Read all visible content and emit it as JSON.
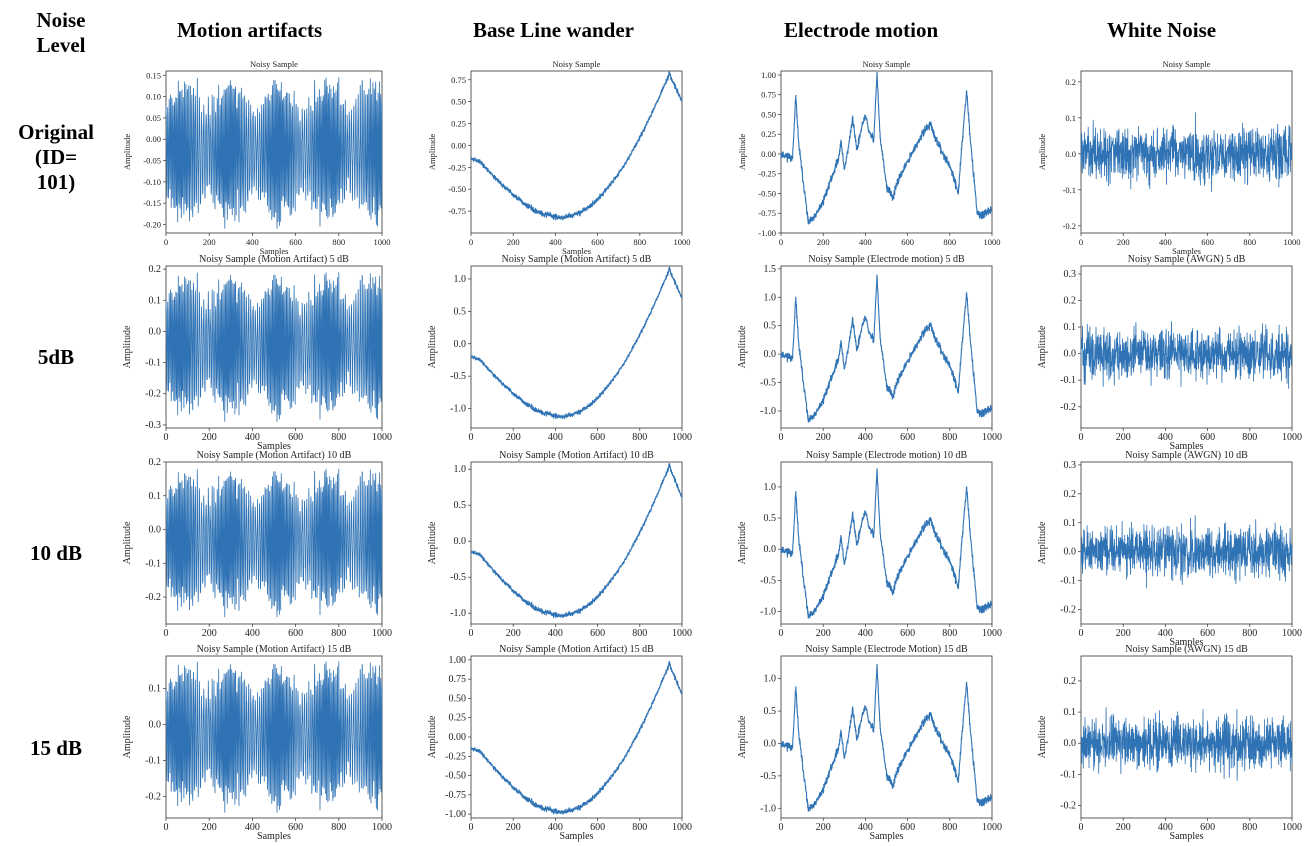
{
  "header": {
    "corner": "Noise Level",
    "columns": [
      "Motion artifacts",
      "Base Line wander",
      "Electrode motion",
      "White Noise"
    ]
  },
  "rows": [
    {
      "lines": [
        "Original",
        "(ID=",
        "101)"
      ]
    },
    {
      "lines": [
        "5dB"
      ]
    },
    {
      "lines": [
        "10 dB"
      ]
    },
    {
      "lines": [
        "15 dB"
      ]
    }
  ],
  "series_color": "#2f73b5",
  "chart_data": [
    {
      "type": "line",
      "row": 0,
      "col": 0,
      "signal": "motion",
      "title": "Noisy Sample",
      "xlabel": "Samples",
      "ylabel": "Amplitude",
      "xlim": [
        0,
        1000
      ],
      "ylim": [
        -0.22,
        0.16
      ],
      "xticks": [
        0,
        200,
        400,
        600,
        800,
        1000
      ],
      "yticks": [
        0.15,
        0.1,
        0.05,
        0.0,
        -0.05,
        -0.1,
        -0.15,
        -0.2
      ],
      "ytick_labels": [
        "0.15",
        "0.10",
        "0.05",
        "0.00",
        "-0.05",
        "-0.10",
        "-0.15",
        "-0.20"
      ],
      "scale": 0.078,
      "amp_min": -0.21,
      "amp_max": 0.145
    },
    {
      "type": "line",
      "row": 0,
      "col": 1,
      "signal": "baseline",
      "title": "Noisy Sample",
      "xlabel": "Samples",
      "ylabel": "Amplitude",
      "xlim": [
        0,
        1000
      ],
      "ylim": [
        -1.0,
        0.85
      ],
      "xticks": [
        0,
        200,
        400,
        600,
        800,
        1000
      ],
      "yticks": [
        0.75,
        0.5,
        0.25,
        0.0,
        -0.25,
        -0.5,
        -0.75
      ],
      "ytick_labels": [
        "0.75",
        "0.50",
        "0.25",
        "0.00",
        "-0.25",
        "-0.50",
        "-0.75"
      ],
      "base_start": -0.15,
      "base_min": -0.82,
      "base_peak": 0.82,
      "base_end": 0.5
    },
    {
      "type": "line",
      "row": 0,
      "col": 2,
      "signal": "electrode",
      "title": "Noisy Sample",
      "xlabel": "",
      "ylabel": "Amplitude",
      "xlim": [
        0,
        1000
      ],
      "ylim": [
        -1.0,
        1.05
      ],
      "xticks": [
        0,
        200,
        400,
        600,
        800,
        1000
      ],
      "yticks": [
        1.0,
        0.75,
        0.5,
        0.25,
        0.0,
        -0.25,
        -0.5,
        -0.75,
        -1.0
      ],
      "ytick_labels": [
        "1.00",
        "0.75",
        "0.50",
        "0.25",
        "0.00",
        "-0.25",
        "-0.50",
        "-0.75",
        "-1.00"
      ],
      "scale": 1.0
    },
    {
      "type": "line",
      "row": 0,
      "col": 3,
      "signal": "white",
      "title": "Noisy Sample",
      "xlabel": "Samples",
      "ylabel": "Amplitude",
      "xlim": [
        0,
        1000
      ],
      "ylim": [
        -0.22,
        0.23
      ],
      "xticks": [
        0,
        200,
        400,
        600,
        800,
        1000
      ],
      "yticks": [
        0.2,
        0.1,
        0.0,
        -0.1,
        -0.2
      ],
      "ytick_labels": [
        "0.2",
        "0.1",
        "0.0",
        "-0.1",
        "-0.2"
      ],
      "scale": 0.07
    },
    {
      "type": "line",
      "row": 1,
      "col": 0,
      "signal": "motion",
      "title": "Noisy Sample (Motion Artifact) 5 dB",
      "xlabel": "Samples",
      "ylabel": "Amplitude",
      "xlim": [
        0,
        1000
      ],
      "ylim": [
        -0.31,
        0.21
      ],
      "xticks": [
        0,
        200,
        400,
        600,
        800,
        1000
      ],
      "yticks": [
        0.2,
        0.1,
        0.0,
        -0.1,
        -0.2,
        -0.3
      ],
      "ytick_labels": [
        "0.2",
        "0.1",
        "0.0",
        "-0.1",
        "-0.2",
        "-0.3"
      ],
      "scale": 0.105,
      "amp_min": -0.29,
      "amp_max": 0.19
    },
    {
      "type": "line",
      "row": 1,
      "col": 1,
      "signal": "baseline",
      "title": "Noisy Sample (Motion Artifact) 5 dB",
      "xlabel": "",
      "ylabel": "Amplitude",
      "xlim": [
        0,
        1000
      ],
      "ylim": [
        -1.3,
        1.2
      ],
      "xticks": [
        0,
        200,
        400,
        600,
        800,
        1000
      ],
      "yticks": [
        1.0,
        0.5,
        0.0,
        -0.5,
        -1.0
      ],
      "ytick_labels": [
        "1.0",
        "0.5",
        "0.0",
        "-0.5",
        "-1.0"
      ],
      "base_start": -0.2,
      "base_min": -1.12,
      "base_peak": 1.15,
      "base_end": 0.7
    },
    {
      "type": "line",
      "row": 1,
      "col": 2,
      "signal": "electrode",
      "title": "Noisy Sample (Electrode motion) 5 dB",
      "xlabel": "",
      "ylabel": "Amplitude",
      "xlim": [
        0,
        1000
      ],
      "ylim": [
        -1.3,
        1.55
      ],
      "xticks": [
        0,
        200,
        400,
        600,
        800,
        1000
      ],
      "yticks": [
        1.5,
        1.0,
        0.5,
        0.0,
        -0.5,
        -1.0
      ],
      "ytick_labels": [
        "1.5",
        "1.0",
        "0.5",
        "0.0",
        "-0.5",
        "-1.0"
      ],
      "scale": 1.35
    },
    {
      "type": "line",
      "row": 1,
      "col": 3,
      "signal": "white",
      "title": "Noisy Sample (AWGN) 5 dB",
      "xlabel": "Samples",
      "ylabel": "Amplitude",
      "xlim": [
        0,
        1000
      ],
      "ylim": [
        -0.28,
        0.33
      ],
      "xticks": [
        0,
        200,
        400,
        600,
        800,
        1000
      ],
      "yticks": [
        0.3,
        0.2,
        0.1,
        0.0,
        -0.1,
        -0.2
      ],
      "ytick_labels": [
        "0.3",
        "0.2",
        "0.1",
        "0.0",
        "-0.1",
        "-0.2"
      ],
      "scale": 0.09
    },
    {
      "type": "line",
      "row": 2,
      "col": 0,
      "signal": "motion",
      "title": "Noisy Sample (Motion Artifact) 10 dB",
      "xlabel": "",
      "ylabel": "Amplitude",
      "xlim": [
        0,
        1000
      ],
      "ylim": [
        -0.28,
        0.2
      ],
      "xticks": [
        0,
        200,
        400,
        600,
        800,
        1000
      ],
      "yticks": [
        0.2,
        0.1,
        0.0,
        -0.1,
        -0.2
      ],
      "ytick_labels": [
        "0.2",
        "0.1",
        "0.0",
        "-0.1",
        "-0.2"
      ],
      "scale": 0.095,
      "amp_min": -0.26,
      "amp_max": 0.18
    },
    {
      "type": "line",
      "row": 2,
      "col": 1,
      "signal": "baseline",
      "title": "Noisy Sample (Motion Artifact) 10 dB",
      "xlabel": "",
      "ylabel": "Amplitude",
      "xlim": [
        0,
        1000
      ],
      "ylim": [
        -1.15,
        1.1
      ],
      "xticks": [
        0,
        200,
        400,
        600,
        800,
        1000
      ],
      "yticks": [
        1.0,
        0.5,
        0.0,
        -0.5,
        -1.0
      ],
      "ytick_labels": [
        "1.0",
        "0.5",
        "0.0",
        "-0.5",
        "-1.0"
      ],
      "base_start": -0.15,
      "base_min": -1.03,
      "base_peak": 1.05,
      "base_end": 0.6
    },
    {
      "type": "line",
      "row": 2,
      "col": 2,
      "signal": "electrode",
      "title": "Noisy Sample (Electrode motion) 10 dB",
      "xlabel": "",
      "ylabel": "Amplitude",
      "xlim": [
        0,
        1000
      ],
      "ylim": [
        -1.2,
        1.4
      ],
      "xticks": [
        0,
        200,
        400,
        600,
        800,
        1000
      ],
      "yticks": [
        1.0,
        0.5,
        0.0,
        -0.5,
        -1.0
      ],
      "ytick_labels": [
        "1.0",
        "0.5",
        "0.0",
        "-0.5",
        "-1.0"
      ],
      "scale": 1.25
    },
    {
      "type": "line",
      "row": 2,
      "col": 3,
      "signal": "white",
      "title": "Noisy Sample (AWGN) 10 dB",
      "xlabel": "Samples",
      "ylabel": "Amplitude",
      "xlim": [
        0,
        1000
      ],
      "ylim": [
        -0.25,
        0.31
      ],
      "xticks": [
        0,
        200,
        400,
        600,
        800,
        1000
      ],
      "yticks": [
        0.3,
        0.2,
        0.1,
        0.0,
        -0.1,
        -0.2
      ],
      "ytick_labels": [
        "0.3",
        "0.2",
        "0.1",
        "0.0",
        "-0.1",
        "-0.2"
      ],
      "scale": 0.083
    },
    {
      "type": "line",
      "row": 3,
      "col": 0,
      "signal": "motion",
      "title": "Noisy Sample (Motion Artifact) 15 dB",
      "xlabel": "Samples",
      "ylabel": "Amplitude",
      "xlim": [
        0,
        1000
      ],
      "ylim": [
        -0.26,
        0.19
      ],
      "xticks": [
        0,
        200,
        400,
        600,
        800,
        1000
      ],
      "yticks": [
        0.1,
        0.0,
        -0.1,
        -0.2
      ],
      "ytick_labels": [
        "0.1",
        "0.0",
        "-0.1",
        "-0.2"
      ],
      "scale": 0.09,
      "amp_min": -0.245,
      "amp_max": 0.175
    },
    {
      "type": "line",
      "row": 3,
      "col": 1,
      "signal": "baseline",
      "title": "Noisy Sample (Motion Artifact) 15 dB",
      "xlabel": "Samples",
      "ylabel": "Amplitude",
      "xlim": [
        0,
        1000
      ],
      "ylim": [
        -1.05,
        1.05
      ],
      "xticks": [
        0,
        200,
        400,
        600,
        800,
        1000
      ],
      "yticks": [
        1.0,
        0.75,
        0.5,
        0.25,
        0.0,
        -0.25,
        -0.5,
        -0.75,
        -1.0
      ],
      "ytick_labels": [
        "1.00",
        "0.75",
        "0.50",
        "0.25",
        "0.00",
        "-0.25",
        "-0.50",
        "-0.75",
        "-1.00"
      ],
      "base_start": -0.15,
      "base_min": -0.97,
      "base_peak": 0.95,
      "base_end": 0.55
    },
    {
      "type": "line",
      "row": 3,
      "col": 2,
      "signal": "electrode",
      "title": "Noisy Sample (Electrode Motion) 15 dB",
      "xlabel": "Samples",
      "ylabel": "Amplitude",
      "xlim": [
        0,
        1000
      ],
      "ylim": [
        -1.15,
        1.35
      ],
      "xticks": [
        0,
        200,
        400,
        600,
        800,
        1000
      ],
      "yticks": [
        1.0,
        0.5,
        0.0,
        -0.5,
        -1.0
      ],
      "ytick_labels": [
        "1.0",
        "0.5",
        "0.0",
        "-0.5",
        "-1.0"
      ],
      "scale": 1.18
    },
    {
      "type": "line",
      "row": 3,
      "col": 3,
      "signal": "white",
      "title": "Noisy Sample (AWGN) 15 dB",
      "xlabel": "Samples",
      "ylabel": "Amplitude",
      "xlim": [
        0,
        1000
      ],
      "ylim": [
        -0.24,
        0.28
      ],
      "xticks": [
        0,
        200,
        400,
        600,
        800,
        1000
      ],
      "yticks": [
        0.2,
        0.1,
        0.0,
        -0.1,
        -0.2
      ],
      "ytick_labels": [
        "0.2",
        "0.1",
        "0.0",
        "-0.1",
        "-0.2"
      ],
      "scale": 0.078
    }
  ]
}
